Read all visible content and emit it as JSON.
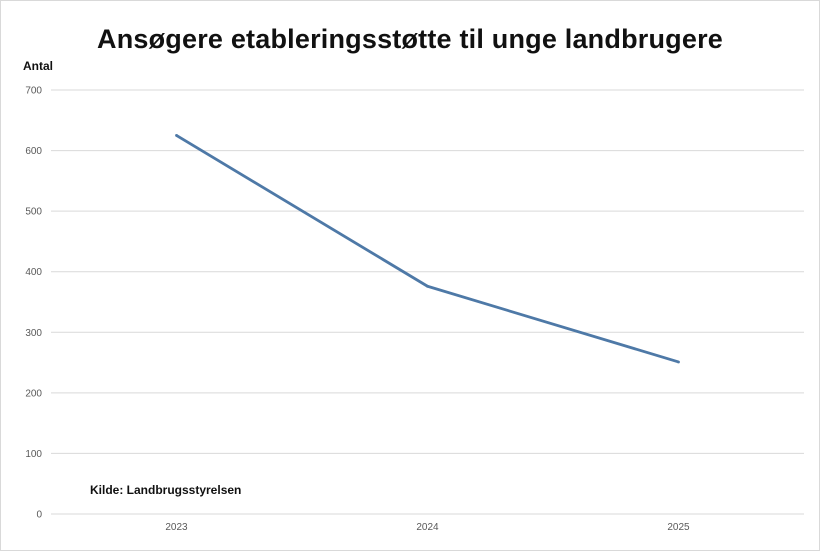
{
  "chart_data": {
    "type": "line",
    "title": "Ansøgere etableringsstøtte til unge landbrugere",
    "ylabel": "Antal",
    "xlabel": "",
    "categories": [
      "2023",
      "2024",
      "2025"
    ],
    "series": [
      {
        "values": [
          625,
          376,
          251
        ],
        "color": "#4e79a7"
      }
    ],
    "ylim": [
      0,
      700
    ],
    "yticks": [
      "0",
      "100",
      "200",
      "300",
      "400",
      "500",
      "600",
      "700"
    ],
    "grid": true,
    "legend": "none",
    "annotations": [
      "Kilde: Landbrugsstyrelsen"
    ],
    "gridline_color": "#d9d9d9"
  }
}
